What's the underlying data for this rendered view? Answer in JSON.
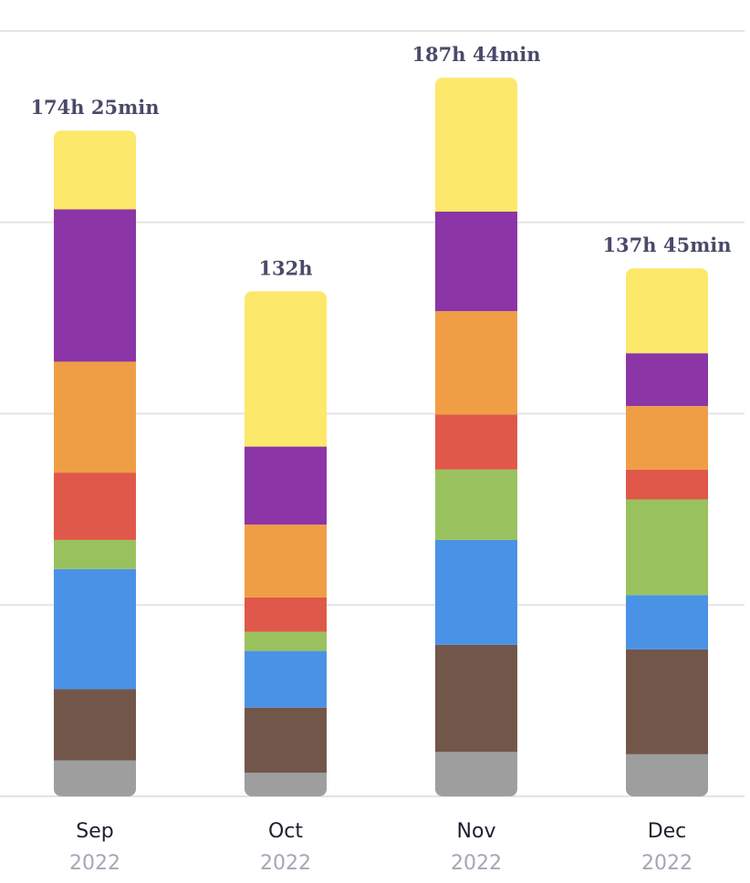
{
  "chart_data": {
    "type": "bar",
    "stacked": true,
    "categories": [
      "Sep",
      "Oct",
      "Nov",
      "Dec"
    ],
    "category_sublabels": [
      "2022",
      "2022",
      "2022",
      "2022"
    ],
    "totals": [
      174.42,
      132.0,
      187.73,
      137.75
    ],
    "total_labels": [
      "174h 25min",
      "132h",
      "187h 44min",
      "137h 45min"
    ],
    "ylim": [
      0,
      200
    ],
    "yticks": [
      0,
      50,
      100,
      150,
      200
    ],
    "grid": true,
    "series": [
      {
        "color": "#9e9e9e",
        "values": [
          9.4,
          6.2,
          11.6,
          11.0
        ]
      },
      {
        "color": "#73564a",
        "values": [
          18.6,
          17.0,
          28.0,
          27.4
        ]
      },
      {
        "color": "#4a92e6",
        "values": [
          31.4,
          14.8,
          27.4,
          14.2
        ]
      },
      {
        "color": "#99c25f",
        "values": [
          7.6,
          5.0,
          18.4,
          25.0
        ]
      },
      {
        "color": "#e05849",
        "values": [
          17.6,
          9.0,
          14.4,
          7.8
        ]
      },
      {
        "color": "#f09e45",
        "values": [
          29.0,
          19.0,
          27.0,
          16.6
        ]
      },
      {
        "color": "#8c35a6",
        "values": [
          39.8,
          20.4,
          26.0,
          13.8
        ]
      },
      {
        "color": "#fce86b",
        "values": [
          20.6,
          40.6,
          35.0,
          22.2
        ]
      }
    ]
  }
}
